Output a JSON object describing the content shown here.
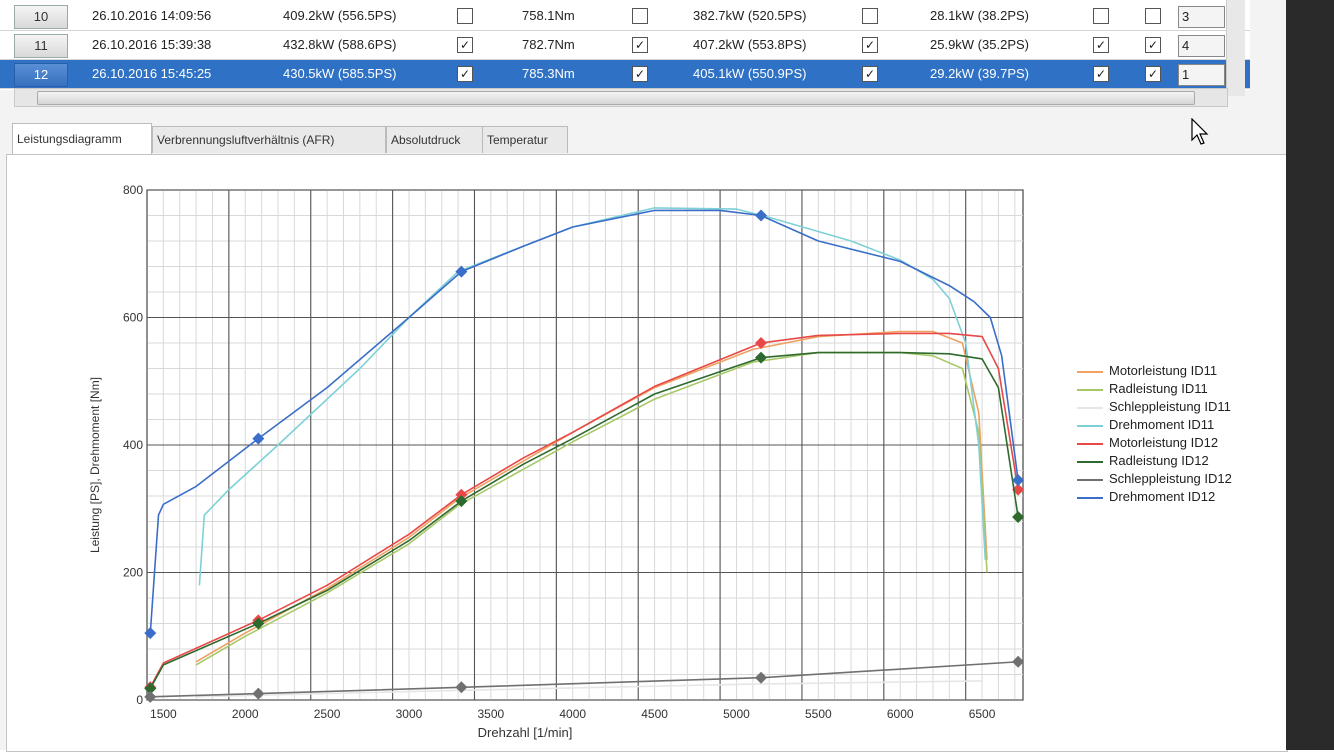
{
  "table": {
    "rows": [
      {
        "id": "10",
        "date": "26.10.2016 14:09:56",
        "power": "409.2kW (556.5PS)",
        "cb1": false,
        "torque": "758.1Nm",
        "cb2": false,
        "wheel": "382.7kW (520.5PS)",
        "cb3": false,
        "drag": "28.1kW (38.2PS)",
        "cb4": false,
        "cb5": false,
        "no": "3",
        "selected": false
      },
      {
        "id": "11",
        "date": "26.10.2016 15:39:38",
        "power": "432.8kW (588.6PS)",
        "cb1": true,
        "torque": "782.7Nm",
        "cb2": true,
        "wheel": "407.2kW (553.8PS)",
        "cb3": true,
        "drag": "25.9kW (35.2PS)",
        "cb4": true,
        "cb5": true,
        "no": "4",
        "selected": false
      },
      {
        "id": "12",
        "date": "26.10.2016 15:45:25",
        "power": "430.5kW (585.5PS)",
        "cb1": true,
        "torque": "785.3Nm",
        "cb2": true,
        "wheel": "405.1kW (550.9PS)",
        "cb3": true,
        "drag": "29.2kW (39.7PS)",
        "cb4": true,
        "cb5": true,
        "no": "1",
        "selected": true
      }
    ],
    "check_glyph": "✓"
  },
  "tabs": [
    "Leistungsdiagramm",
    "Verbrennungsluftverhältnis (AFR)",
    "Absolutdruck",
    "Temperatur"
  ],
  "chart_data": {
    "type": "line",
    "xlabel": "Drehzahl [1/min]",
    "ylabel": "Leistung [PS], Drehmoment [Nm]",
    "xlim": [
      1400,
      6750
    ],
    "ylim": [
      0,
      800
    ],
    "x_ticks": [
      1500,
      2000,
      2500,
      3000,
      3500,
      4000,
      4500,
      5000,
      5500,
      6000,
      6500
    ],
    "y_ticks": [
      0,
      200,
      400,
      600,
      800
    ],
    "grid": true,
    "legend_position": "right",
    "series": [
      {
        "name": "Motorleistung ID11",
        "color": "#f0a060",
        "marker": false,
        "points": [
          [
            1700,
            60
          ],
          [
            2000,
            105
          ],
          [
            2500,
            175
          ],
          [
            3000,
            255
          ],
          [
            3300,
            315
          ],
          [
            4000,
            420
          ],
          [
            4500,
            490
          ],
          [
            5100,
            550
          ],
          [
            5500,
            570
          ],
          [
            6000,
            578
          ],
          [
            6200,
            578
          ],
          [
            6380,
            560
          ],
          [
            6480,
            450
          ],
          [
            6530,
            220
          ]
        ]
      },
      {
        "name": "Radleistung ID11",
        "color": "#a8c868",
        "marker": false,
        "points": [
          [
            1700,
            55
          ],
          [
            2000,
            100
          ],
          [
            2500,
            168
          ],
          [
            3000,
            245
          ],
          [
            3300,
            305
          ],
          [
            4000,
            405
          ],
          [
            4500,
            472
          ],
          [
            5100,
            530
          ],
          [
            5500,
            545
          ],
          [
            6000,
            545
          ],
          [
            6200,
            540
          ],
          [
            6380,
            520
          ],
          [
            6480,
            420
          ],
          [
            6530,
            200
          ]
        ]
      },
      {
        "name": "Schleppleistung ID11",
        "color": "#e6e6e6",
        "marker": false,
        "points": [
          [
            1700,
            5
          ],
          [
            3300,
            15
          ],
          [
            5100,
            25
          ],
          [
            6500,
            30
          ]
        ]
      },
      {
        "name": "Drehmoment ID11",
        "color": "#7ed0d8",
        "marker": false,
        "points": [
          [
            1720,
            180
          ],
          [
            1750,
            290
          ],
          [
            1900,
            330
          ],
          [
            2200,
            400
          ],
          [
            2700,
            520
          ],
          [
            3000,
            600
          ],
          [
            3300,
            672
          ],
          [
            3700,
            712
          ],
          [
            4000,
            742
          ],
          [
            4500,
            772
          ],
          [
            5000,
            770
          ],
          [
            5200,
            757
          ],
          [
            5700,
            720
          ],
          [
            6000,
            690
          ],
          [
            6200,
            660
          ],
          [
            6300,
            630
          ],
          [
            6400,
            560
          ],
          [
            6480,
            400
          ],
          [
            6520,
            220
          ]
        ]
      },
      {
        "name": "Motorleistung ID12",
        "color": "#e84848",
        "marker": true,
        "points": [
          [
            1420,
            20
          ],
          [
            1500,
            58
          ],
          [
            2080,
            125
          ],
          [
            2500,
            180
          ],
          [
            3000,
            260
          ],
          [
            3320,
            322
          ],
          [
            3700,
            380
          ],
          [
            4000,
            420
          ],
          [
            4500,
            492
          ],
          [
            5150,
            560
          ],
          [
            5500,
            572
          ],
          [
            6000,
            575
          ],
          [
            6300,
            575
          ],
          [
            6500,
            570
          ],
          [
            6600,
            520
          ],
          [
            6720,
            330
          ]
        ]
      },
      {
        "name": "Radleistung ID12",
        "color": "#2e6a2e",
        "marker": true,
        "points": [
          [
            1420,
            18
          ],
          [
            1500,
            55
          ],
          [
            2080,
            120
          ],
          [
            2500,
            172
          ],
          [
            3000,
            250
          ],
          [
            3320,
            312
          ],
          [
            3700,
            370
          ],
          [
            4000,
            410
          ],
          [
            4500,
            480
          ],
          [
            5150,
            537
          ],
          [
            5500,
            545
          ],
          [
            6000,
            545
          ],
          [
            6300,
            543
          ],
          [
            6500,
            535
          ],
          [
            6600,
            490
          ],
          [
            6720,
            287
          ]
        ]
      },
      {
        "name": "Schleppleistung ID12",
        "color": "#707070",
        "marker": true,
        "points": [
          [
            1420,
            5
          ],
          [
            2080,
            10
          ],
          [
            3320,
            20
          ],
          [
            5150,
            35
          ],
          [
            6720,
            60
          ]
        ]
      },
      {
        "name": "Drehmoment ID12",
        "color": "#3a6ec8",
        "marker": true,
        "points": [
          [
            1420,
            105
          ],
          [
            1470,
            290
          ],
          [
            1500,
            307
          ],
          [
            1700,
            335
          ],
          [
            2080,
            410
          ],
          [
            2500,
            490
          ],
          [
            3000,
            600
          ],
          [
            3320,
            672
          ],
          [
            3700,
            712
          ],
          [
            4000,
            742
          ],
          [
            4500,
            768
          ],
          [
            4900,
            768
          ],
          [
            5150,
            760
          ],
          [
            5500,
            720
          ],
          [
            6000,
            688
          ],
          [
            6300,
            650
          ],
          [
            6450,
            625
          ],
          [
            6550,
            600
          ],
          [
            6620,
            540
          ],
          [
            6720,
            345
          ]
        ]
      }
    ]
  }
}
